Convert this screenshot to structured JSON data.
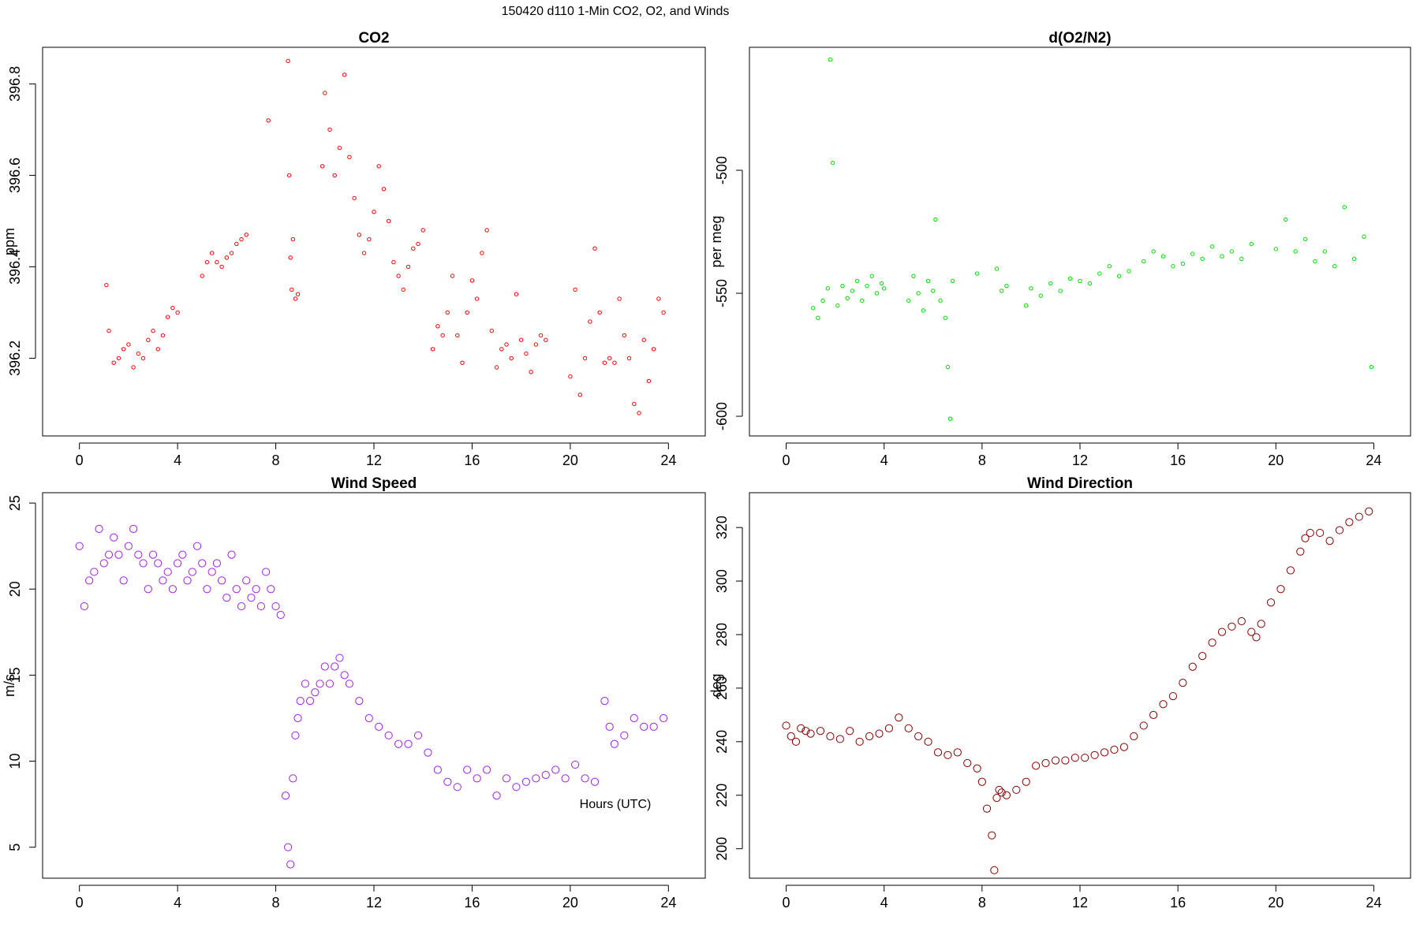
{
  "figure": {
    "title": "150420   d110   1-Min CO2, O2, and Winds",
    "xlabel": "Hours (UTC)"
  },
  "chart_data": [
    {
      "type": "scatter",
      "title": "CO2",
      "xlabel": "",
      "ylabel": "ppm",
      "color": "#ff0000",
      "marker_size": "small",
      "xlim": [
        -1.5,
        25.5
      ],
      "ylim": [
        396.03,
        396.88
      ],
      "xticks": [
        0,
        4,
        8,
        12,
        16,
        20,
        24
      ],
      "yticks": [
        396.2,
        396.4,
        396.6,
        396.8
      ],
      "ytick_labels": [
        "396.2",
        "396.4",
        "396.6",
        "396.8"
      ],
      "series": [
        {
          "x": [
            1.1,
            1.2,
            1.4,
            1.6,
            1.8,
            2.0,
            2.2,
            2.4,
            2.6,
            2.8,
            3.0,
            3.2,
            3.4,
            3.6,
            3.8,
            4.0,
            5.0,
            5.2,
            5.4,
            5.6,
            5.8,
            6.0,
            6.2,
            6.4,
            6.6,
            6.8,
            7.7,
            8.5,
            8.55,
            8.6,
            8.65,
            8.7,
            8.8,
            8.9,
            9.9,
            10.0,
            10.2,
            10.4,
            10.6,
            10.8,
            11.0,
            11.2,
            11.4,
            11.6,
            11.8,
            12.0,
            12.2,
            12.4,
            12.6,
            12.8,
            13.0,
            13.2,
            13.4,
            13.6,
            13.8,
            14.0,
            14.4,
            14.6,
            14.8,
            15.0,
            15.2,
            15.4,
            15.6,
            15.8,
            16.0,
            16.2,
            16.4,
            16.6,
            16.8,
            17.0,
            17.2,
            17.4,
            17.6,
            17.8,
            18.0,
            18.2,
            18.4,
            18.6,
            18.8,
            19.0,
            20.0,
            20.2,
            20.4,
            20.6,
            20.8,
            21.0,
            21.2,
            21.4,
            21.6,
            21.8,
            22.0,
            22.2,
            22.4,
            22.6,
            22.8,
            23.0,
            23.2,
            23.4,
            23.6,
            23.8
          ],
          "y": [
            396.36,
            396.26,
            396.19,
            396.2,
            396.22,
            396.23,
            396.18,
            396.21,
            396.2,
            396.24,
            396.26,
            396.22,
            396.25,
            396.29,
            396.31,
            396.3,
            396.38,
            396.41,
            396.43,
            396.41,
            396.4,
            396.42,
            396.43,
            396.45,
            396.46,
            396.47,
            396.72,
            396.85,
            396.6,
            396.42,
            396.35,
            396.46,
            396.33,
            396.34,
            396.62,
            396.78,
            396.7,
            396.6,
            396.66,
            396.82,
            396.64,
            396.55,
            396.47,
            396.43,
            396.46,
            396.52,
            396.62,
            396.57,
            396.5,
            396.41,
            396.38,
            396.35,
            396.4,
            396.44,
            396.45,
            396.48,
            396.22,
            396.27,
            396.25,
            396.3,
            396.38,
            396.25,
            396.19,
            396.3,
            396.37,
            396.33,
            396.43,
            396.48,
            396.26,
            396.18,
            396.22,
            396.23,
            396.2,
            396.34,
            396.24,
            396.21,
            396.17,
            396.23,
            396.25,
            396.24,
            396.16,
            396.35,
            396.12,
            396.2,
            396.28,
            396.44,
            396.3,
            396.19,
            396.2,
            396.19,
            396.33,
            396.25,
            396.2,
            396.1,
            396.08,
            396.24,
            396.15,
            396.22,
            396.33,
            396.3
          ]
        }
      ]
    },
    {
      "type": "scatter",
      "title": "d(O2/N2)",
      "xlabel": "",
      "ylabel": "per meg",
      "color": "#00dd00",
      "marker_size": "small",
      "xlim": [
        -1.5,
        25.5
      ],
      "ylim": [
        -608,
        -450
      ],
      "xticks": [
        0,
        4,
        8,
        12,
        16,
        20,
        24
      ],
      "yticks": [
        -600,
        -550,
        -500
      ],
      "ytick_labels": [
        "-600",
        "-550",
        "-500"
      ],
      "series": [
        {
          "x": [
            1.1,
            1.3,
            1.5,
            1.7,
            1.8,
            1.9,
            2.1,
            2.3,
            2.5,
            2.7,
            2.9,
            3.1,
            3.3,
            3.5,
            3.7,
            3.9,
            4.0,
            5.0,
            5.2,
            5.4,
            5.6,
            5.8,
            6.0,
            6.1,
            6.3,
            6.5,
            6.6,
            6.7,
            6.8,
            7.8,
            8.6,
            8.8,
            9.0,
            9.8,
            10.0,
            10.4,
            10.8,
            11.2,
            11.6,
            12.0,
            12.4,
            12.8,
            13.2,
            13.6,
            14.0,
            14.6,
            15.0,
            15.4,
            15.8,
            16.2,
            16.6,
            17.0,
            17.4,
            17.8,
            18.2,
            18.6,
            19.0,
            20.0,
            20.4,
            20.8,
            21.2,
            21.6,
            22.0,
            22.4,
            22.8,
            23.2,
            23.6,
            23.9
          ],
          "y": [
            -556,
            -560,
            -553,
            -548,
            -455,
            -497,
            -555,
            -547,
            -552,
            -549,
            -545,
            -553,
            -547,
            -543,
            -550,
            -546,
            -548,
            -553,
            -543,
            -550,
            -557,
            -545,
            -549,
            -520,
            -553,
            -560,
            -580,
            -601,
            -545,
            -542,
            -540,
            -549,
            -547,
            -555,
            -548,
            -551,
            -546,
            -549,
            -544,
            -545,
            -546,
            -542,
            -539,
            -543,
            -541,
            -537,
            -533,
            -535,
            -539,
            -538,
            -534,
            -536,
            -531,
            -535,
            -533,
            -536,
            -530,
            -532,
            -520,
            -533,
            -528,
            -537,
            -533,
            -539,
            -515,
            -536,
            -527,
            -580
          ]
        }
      ]
    },
    {
      "type": "scatter",
      "title": "Wind Speed",
      "xlabel": "",
      "ylabel": "m/s",
      "color": "#a020f0",
      "marker_size": "large",
      "xlim": [
        -1.5,
        25.5
      ],
      "ylim": [
        3.2,
        25.6
      ],
      "xticks": [
        0,
        4,
        8,
        12,
        16,
        20,
        24
      ],
      "yticks": [
        5,
        10,
        15,
        20,
        25
      ],
      "ytick_labels": [
        "5",
        "10",
        "15",
        "20",
        "25"
      ],
      "series": [
        {
          "x": [
            0.0,
            0.2,
            0.4,
            0.6,
            0.8,
            1.0,
            1.2,
            1.4,
            1.6,
            1.8,
            2.0,
            2.2,
            2.4,
            2.6,
            2.8,
            3.0,
            3.2,
            3.4,
            3.6,
            3.8,
            4.0,
            4.2,
            4.4,
            4.6,
            4.8,
            5.0,
            5.2,
            5.4,
            5.6,
            5.8,
            6.0,
            6.2,
            6.4,
            6.6,
            6.8,
            7.0,
            7.2,
            7.4,
            7.6,
            7.8,
            8.0,
            8.2,
            8.4,
            8.5,
            8.6,
            8.7,
            8.8,
            8.9,
            9.0,
            9.2,
            9.4,
            9.6,
            9.8,
            10.0,
            10.2,
            10.4,
            10.6,
            10.8,
            11.0,
            11.4,
            11.8,
            12.2,
            12.6,
            13.0,
            13.4,
            13.8,
            14.2,
            14.6,
            15.0,
            15.4,
            15.8,
            16.2,
            16.6,
            17.0,
            17.4,
            17.8,
            18.2,
            18.6,
            19.0,
            19.4,
            19.8,
            20.2,
            20.6,
            21.0,
            21.4,
            21.6,
            21.8,
            22.2,
            22.6,
            23.0,
            23.4,
            23.8
          ],
          "y": [
            22.5,
            19.0,
            20.5,
            21.0,
            23.5,
            21.5,
            22.0,
            23.0,
            22.0,
            20.5,
            22.5,
            23.5,
            22.0,
            21.5,
            20.0,
            22.0,
            21.5,
            20.5,
            21.0,
            20.0,
            21.5,
            22.0,
            20.5,
            21.0,
            22.5,
            21.5,
            20.0,
            21.0,
            21.5,
            20.5,
            19.5,
            22.0,
            20.0,
            19.0,
            20.5,
            19.5,
            20.0,
            19.0,
            21.0,
            20.0,
            19.0,
            18.5,
            8.0,
            5.0,
            4.0,
            9.0,
            11.5,
            12.5,
            13.5,
            14.5,
            13.5,
            14.0,
            14.5,
            15.5,
            14.5,
            15.5,
            16.0,
            15.0,
            14.5,
            13.5,
            12.5,
            12.0,
            11.5,
            11.0,
            11.0,
            11.5,
            10.5,
            9.5,
            8.8,
            8.5,
            9.5,
            9.0,
            9.5,
            8.0,
            9.0,
            8.5,
            8.8,
            9.0,
            9.2,
            9.5,
            9.0,
            9.8,
            9.0,
            8.8,
            13.5,
            12.0,
            11.0,
            11.5,
            12.5,
            12.0,
            12.0,
            12.5
          ]
        }
      ]
    },
    {
      "type": "scatter",
      "title": "Wind Direction",
      "xlabel": "",
      "ylabel": "deg",
      "color": "#8b0000",
      "marker_size": "large",
      "xlim": [
        -1.5,
        25.5
      ],
      "ylim": [
        189,
        333
      ],
      "xticks": [
        0,
        4,
        8,
        12,
        16,
        20,
        24
      ],
      "yticks": [
        200,
        220,
        240,
        260,
        280,
        300,
        320
      ],
      "ytick_labels": [
        "200",
        "220",
        "240",
        "260",
        "280",
        "300",
        "320"
      ],
      "series": [
        {
          "x": [
            0.0,
            0.2,
            0.4,
            0.6,
            0.8,
            1.0,
            1.4,
            1.8,
            2.2,
            2.6,
            3.0,
            3.4,
            3.8,
            4.2,
            4.6,
            5.0,
            5.4,
            5.8,
            6.2,
            6.6,
            7.0,
            7.4,
            7.8,
            8.0,
            8.2,
            8.4,
            8.5,
            8.6,
            8.7,
            8.8,
            9.0,
            9.4,
            9.8,
            10.2,
            10.6,
            11.0,
            11.4,
            11.8,
            12.2,
            12.6,
            13.0,
            13.4,
            13.8,
            14.2,
            14.6,
            15.0,
            15.4,
            15.8,
            16.2,
            16.6,
            17.0,
            17.4,
            17.8,
            18.2,
            18.6,
            19.0,
            19.2,
            19.4,
            19.8,
            20.2,
            20.6,
            21.0,
            21.2,
            21.4,
            21.8,
            22.2,
            22.6,
            23.0,
            23.4,
            23.8
          ],
          "y": [
            246,
            242,
            240,
            245,
            244,
            243,
            244,
            242,
            241,
            244,
            240,
            242,
            243,
            245,
            249,
            245,
            242,
            240,
            236,
            235,
            236,
            232,
            230,
            225,
            215,
            205,
            192,
            219,
            222,
            221,
            220,
            222,
            225,
            231,
            232,
            233,
            233,
            234,
            234,
            235,
            236,
            237,
            238,
            242,
            246,
            250,
            254,
            257,
            262,
            268,
            272,
            277,
            281,
            283,
            285,
            281,
            279,
            284,
            292,
            297,
            304,
            311,
            316,
            318,
            318,
            315,
            319,
            322,
            324,
            326
          ]
        }
      ]
    }
  ]
}
